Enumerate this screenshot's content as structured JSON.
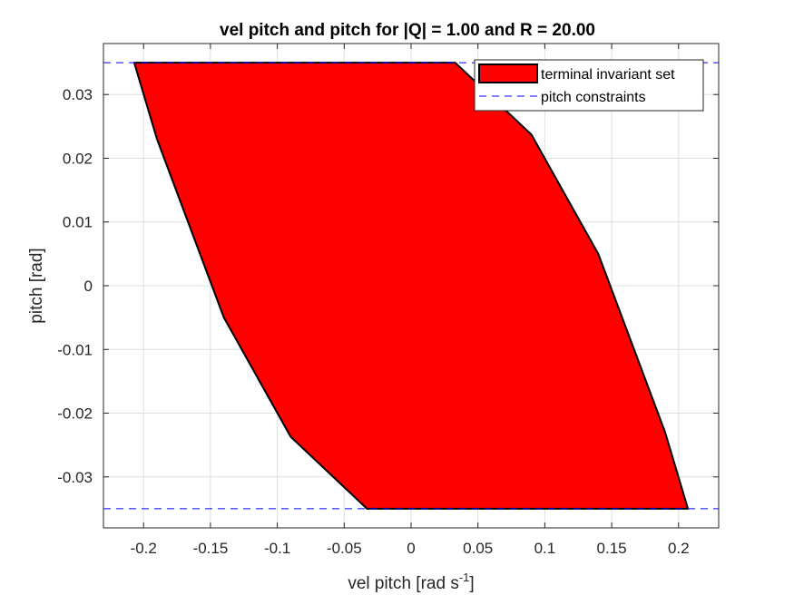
{
  "chart_data": {
    "type": "area",
    "title": "vel pitch and pitch for |Q| = 1.00 and R = 20.00",
    "xlabel": "vel pitch [rad s",
    "xlabel_sup": "-1",
    "xlabel_end": "]",
    "ylabel": "pitch [rad]",
    "xlim": [
      -0.23,
      0.23
    ],
    "ylim": [
      -0.038,
      0.038
    ],
    "xticks": [
      -0.2,
      -0.15,
      -0.1,
      -0.05,
      0,
      0.05,
      0.1,
      0.15,
      0.2
    ],
    "xtick_labels": [
      "-0.2",
      "-0.15",
      "-0.1",
      "-0.05",
      "0",
      "0.05",
      "0.1",
      "0.15",
      "0.2"
    ],
    "yticks": [
      0.03,
      0.02,
      0.01,
      0,
      -0.01,
      -0.02,
      -0.03
    ],
    "ytick_labels": [
      "0.03",
      "0.02",
      "0.01",
      "0",
      "-0.01",
      "-0.02",
      "-0.03"
    ],
    "grid": true,
    "legend_position": "top-right",
    "series": [
      {
        "name": "terminal invariant set",
        "kind": "filled-polygon",
        "color": "#ff0000",
        "edge_color": "#000000",
        "x": [
          -0.207,
          0.033,
          0.09,
          0.14,
          0.19,
          0.207,
          -0.033,
          -0.09,
          -0.14,
          -0.19,
          -0.207
        ],
        "y": [
          0.035,
          0.035,
          0.0237,
          0.005,
          -0.023,
          -0.035,
          -0.035,
          -0.0237,
          -0.005,
          0.023,
          0.035
        ]
      },
      {
        "name": "pitch constraints",
        "kind": "dashed-hlines",
        "color": "#0000ff",
        "y": [
          0.035,
          -0.035
        ]
      }
    ]
  }
}
